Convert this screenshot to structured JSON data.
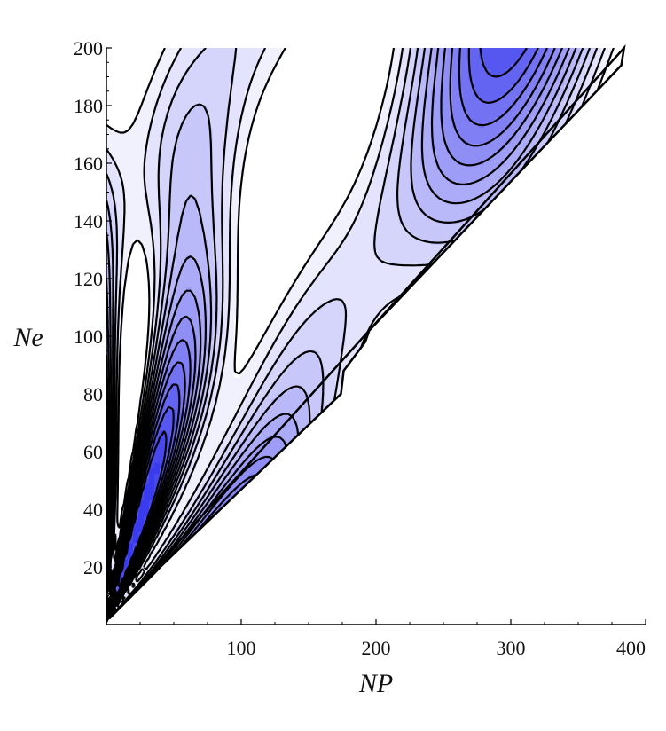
{
  "chart_data": {
    "type": "contour",
    "xlabel": "NP",
    "ylabel": "Ne",
    "xlim": [
      0,
      400
    ],
    "ylim": [
      0,
      200
    ],
    "xticks": [
      100,
      200,
      300,
      400
    ],
    "yticks": [
      20,
      40,
      60,
      80,
      100,
      120,
      140,
      160,
      180,
      200
    ],
    "grid": false,
    "legend": "none",
    "colors": {
      "low": "#ffffff",
      "high": "#3a3aee",
      "contour_line": "#000000",
      "axis": "#000000"
    },
    "domain_note_region": "triangular region bounded by Ne = NP/2 (lower edge) and Ne = 200 (top)",
    "contour_levels": 14
  }
}
